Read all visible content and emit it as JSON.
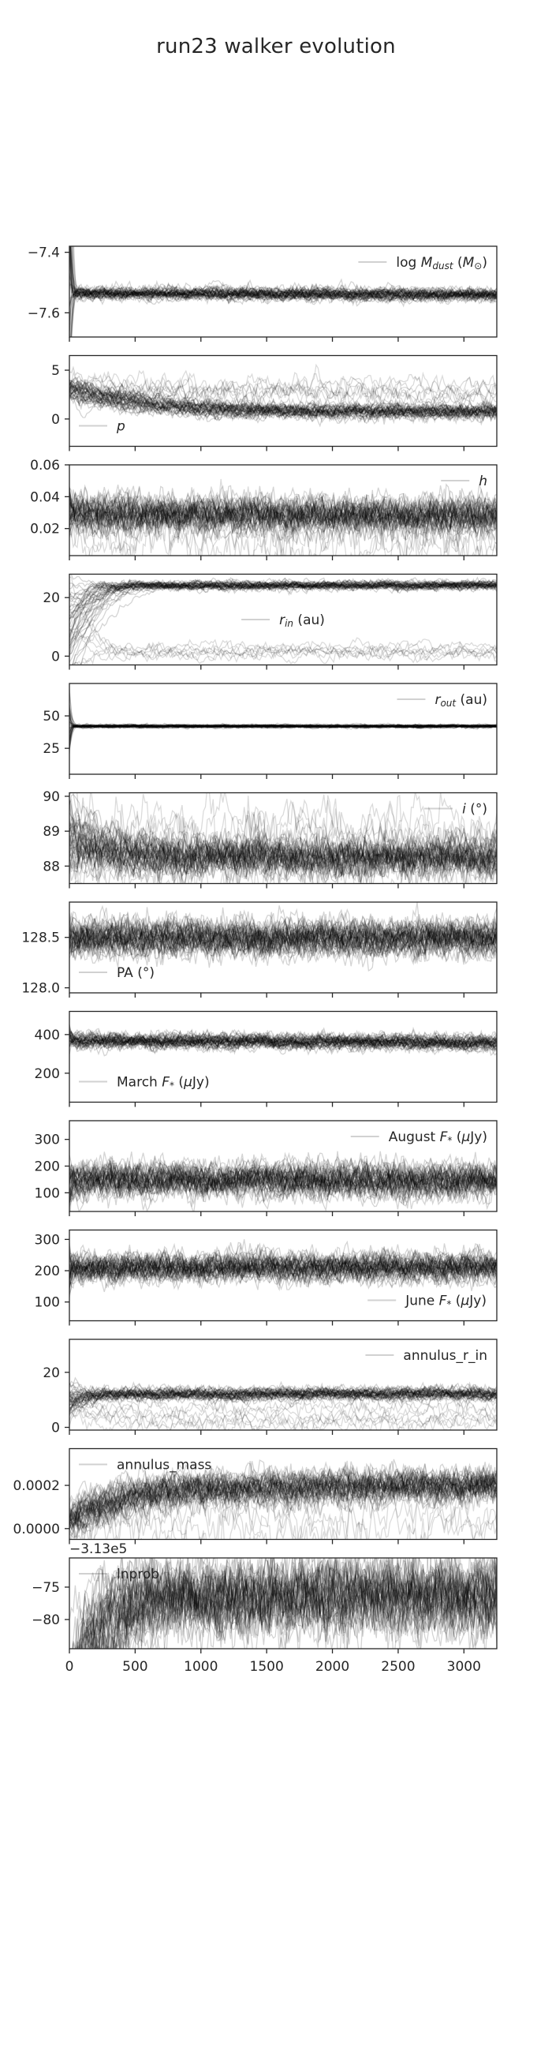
{
  "chart_data": {
    "type": "line",
    "title": "run23 walker evolution",
    "n_walkers": 48,
    "n_steps": 3250,
    "line_color": "#000000",
    "x_ticks": [
      0,
      500,
      1000,
      1500,
      2000,
      2500,
      3000
    ],
    "xlim": [
      0,
      3250
    ],
    "panels": [
      {
        "id": "log_mdust",
        "legend": "log Mdust (M⊙)",
        "legend_parts": [
          {
            "t": "log "
          },
          {
            "t": "M",
            "italic": true
          },
          {
            "t": "dust",
            "sub": true,
            "italic": true
          },
          {
            "t": " ("
          },
          {
            "t": "M",
            "italic": true
          },
          {
            "t": "⊙",
            "sub": true
          },
          {
            "t": ")"
          }
        ],
        "legend_pos": "upper-right",
        "ylim": [
          -7.68,
          -7.38
        ],
        "ticks": [
          -7.4,
          -7.6
        ],
        "tick_labels": [
          "−7.4",
          "−7.6"
        ],
        "start": -7.47,
        "start_spread": 0.25,
        "settle": 40,
        "center": -7.535,
        "drift_end": -7.54,
        "noise": 0.008,
        "stray_frac": 0.0,
        "stray_level": -7.55
      },
      {
        "id": "p",
        "legend": "p",
        "legend_parts": [
          {
            "t": "p",
            "italic": true
          }
        ],
        "legend_pos": "lower-left",
        "ylim": [
          -2.8,
          6.5
        ],
        "ticks": [
          5,
          0
        ],
        "tick_labels": [
          "5",
          "0"
        ],
        "start": 3.1,
        "start_spread": 0.6,
        "settle": 1500,
        "center": 0.8,
        "drift_end": 0.7,
        "noise": 0.3,
        "stray_frac": 0.15,
        "stray_level": 2.8
      },
      {
        "id": "h",
        "legend": "h",
        "legend_parts": [
          {
            "t": "h",
            "italic": true
          }
        ],
        "legend_pos": "upper-right",
        "ylim": [
          0.003,
          0.06
        ],
        "ticks": [
          0.06,
          0.04,
          0.02
        ],
        "tick_labels": [
          "0.06",
          "0.04",
          "0.02"
        ],
        "start": 0.03,
        "start_spread": 0.01,
        "settle": 50,
        "center": 0.03,
        "drift_end": 0.028,
        "noise": 0.0045,
        "stray_frac": 0.1,
        "stray_level": 0.02
      },
      {
        "id": "r_in",
        "legend": "rin (au)",
        "legend_parts": [
          {
            "t": "r",
            "italic": true
          },
          {
            "t": "in",
            "sub": true,
            "italic": true
          },
          {
            "t": " (au)"
          }
        ],
        "legend_pos": "center",
        "ylim": [
          -3,
          28
        ],
        "ticks": [
          20,
          0
        ],
        "tick_labels": [
          "20",
          "0"
        ],
        "start": 10,
        "start_spread": 10,
        "settle": 500,
        "center": 24,
        "drift_end": 24.3,
        "noise": 0.6,
        "stray_frac": 0.15,
        "stray_level": 2
      },
      {
        "id": "r_out",
        "legend": "rout (au)",
        "legend_parts": [
          {
            "t": "r",
            "italic": true
          },
          {
            "t": "out",
            "sub": true,
            "italic": true
          },
          {
            "t": " (au)"
          }
        ],
        "legend_pos": "upper-right",
        "ylim": [
          5,
          75
        ],
        "ticks": [
          50,
          25
        ],
        "tick_labels": [
          "50",
          "25"
        ],
        "start": 45,
        "start_spread": 15,
        "settle": 40,
        "center": 42,
        "drift_end": 42,
        "noise": 0.5,
        "stray_frac": 0.0,
        "stray_level": 42
      },
      {
        "id": "i",
        "legend": "i (°)",
        "legend_parts": [
          {
            "t": "i",
            "italic": true
          },
          {
            "t": " (°)"
          }
        ],
        "legend_pos": "upper-right",
        "ylim": [
          87.5,
          90.1
        ],
        "ticks": [
          90,
          89,
          88
        ],
        "tick_labels": [
          "90",
          "89",
          "88"
        ],
        "start": 88.9,
        "start_spread": 0.6,
        "settle": 600,
        "center": 88.3,
        "drift_end": 88.25,
        "noise": 0.22,
        "stray_frac": 0.1,
        "stray_level": 88.9
      },
      {
        "id": "pa",
        "legend": "PA (°)",
        "legend_parts": [
          {
            "t": "PA  (°)"
          }
        ],
        "legend_pos": "lower-left",
        "ylim": [
          127.95,
          128.85
        ],
        "ticks": [
          128.5,
          128.0
        ],
        "tick_labels": [
          "128.5",
          "128.0"
        ],
        "start": 128.5,
        "start_spread": 0.08,
        "settle": 40,
        "center": 128.5,
        "drift_end": 128.5,
        "noise": 0.07,
        "stray_frac": 0.0,
        "stray_level": 128.5
      },
      {
        "id": "march_f",
        "legend": "March F* (μJy)",
        "legend_parts": [
          {
            "t": "March "
          },
          {
            "t": "F",
            "italic": true
          },
          {
            "t": "*",
            "sub": true
          },
          {
            "t": " ("
          },
          {
            "t": "μ",
            "italic": true
          },
          {
            "t": "Jy)"
          }
        ],
        "legend_pos": "lower-left",
        "ylim": [
          50,
          520
        ],
        "ticks": [
          400,
          200
        ],
        "tick_labels": [
          "400",
          "200"
        ],
        "start": 390,
        "start_spread": 30,
        "settle": 40,
        "center": 370,
        "drift_end": 360,
        "noise": 15,
        "stray_frac": 0.0,
        "stray_level": 370
      },
      {
        "id": "august_f",
        "legend": "August F* (μJy)",
        "legend_parts": [
          {
            "t": "August "
          },
          {
            "t": "F",
            "italic": true
          },
          {
            "t": "*",
            "sub": true
          },
          {
            "t": " ("
          },
          {
            "t": "μ",
            "italic": true
          },
          {
            "t": "Jy)"
          }
        ],
        "legend_pos": "upper-right",
        "ylim": [
          30,
          370
        ],
        "ticks": [
          300,
          200,
          100
        ],
        "tick_labels": [
          "300",
          "200",
          "100"
        ],
        "start": 130,
        "start_spread": 50,
        "settle": 60,
        "center": 150,
        "drift_end": 145,
        "noise": 25,
        "stray_frac": 0.0,
        "stray_level": 150
      },
      {
        "id": "june_f",
        "legend": "June F* (μJy)",
        "legend_parts": [
          {
            "t": "June "
          },
          {
            "t": "F",
            "italic": true
          },
          {
            "t": "*",
            "sub": true
          },
          {
            "t": " ("
          },
          {
            "t": "μ",
            "italic": true
          },
          {
            "t": "Jy)"
          }
        ],
        "legend_pos": "lower-right",
        "ylim": [
          40,
          330
        ],
        "ticks": [
          300,
          200,
          100
        ],
        "tick_labels": [
          "300",
          "200",
          "100"
        ],
        "start": 205,
        "start_spread": 35,
        "settle": 40,
        "center": 210,
        "drift_end": 212,
        "noise": 18,
        "stray_frac": 0.0,
        "stray_level": 210
      },
      {
        "id": "annulus_r_in",
        "legend": "annulus_r_in",
        "legend_parts": [
          {
            "t": "annulus_r_in"
          }
        ],
        "legend_pos": "upper-right",
        "ylim": [
          -1,
          32
        ],
        "ticks": [
          20,
          0
        ],
        "tick_labels": [
          "20",
          "0"
        ],
        "start": 9,
        "start_spread": 3,
        "settle": 300,
        "center": 12,
        "drift_end": 12.3,
        "noise": 0.9,
        "stray_frac": 0.15,
        "stray_level": 4
      },
      {
        "id": "annulus_mass",
        "legend": "annulus_mass",
        "legend_parts": [
          {
            "t": "annulus_mass"
          }
        ],
        "legend_pos": "upper-left",
        "ylim": [
          -5e-05,
          0.00037
        ],
        "ticks": [
          0.0002,
          0.0
        ],
        "tick_labels": [
          "0.0002",
          "0.0000"
        ],
        "start": 4e-05,
        "start_spread": 3e-05,
        "settle": 1000,
        "center": 0.00018,
        "drift_end": 0.0002,
        "noise": 3e-05,
        "stray_frac": 0.1,
        "stray_level": 3e-05
      },
      {
        "id": "lnprob",
        "legend": "lnprob",
        "legend_parts": [
          {
            "t": "lnprob"
          }
        ],
        "legend_pos": "upper-left",
        "ylim": [
          -84.5,
          -70.5
        ],
        "ticks": [
          -75,
          -80
        ],
        "tick_labels": [
          "−75",
          "−80"
        ],
        "offset_text": "−3.13e5",
        "start": -90,
        "start_spread": 3,
        "settle": 700,
        "center": -76.5,
        "drift_end": -76.5,
        "noise": 2.2,
        "stray_frac": 0.0,
        "stray_level": -76.5
      }
    ]
  }
}
